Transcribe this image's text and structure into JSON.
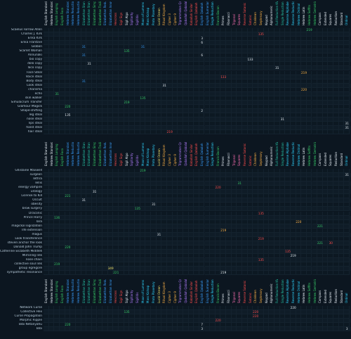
{
  "colors": {
    "background": "#0c1620",
    "label": "#b9cddc",
    "green": "#38d06a",
    "blue": "#3aa0ff",
    "red": "#ff4d4d",
    "orange": "#ffb347",
    "yellow": "#f2e36a",
    "cyan": "#2fd6ff",
    "teal": "#27c4a6",
    "purple": "#b37dff",
    "pink": "#ff6fb3",
    "white": "#e6eef4"
  },
  "headers": [
    {
      "label": "English Standard",
      "color": "#e6eef4"
    },
    {
      "label": "Hebrew Standard",
      "color": "#e6eef4"
    },
    {
      "label": "English Longing",
      "color": "#38d06a"
    },
    {
      "label": "English Foco",
      "color": "#38d06a"
    },
    {
      "label": "Hebrew Standard",
      "color": "#3aa0ff"
    },
    {
      "label": "Hebrew Reduction",
      "color": "#3aa0ff"
    },
    {
      "label": "Hebrew Reduction",
      "color": "#3aa0ff"
    },
    {
      "label": "Elizabethan Standard",
      "color": "#27c4a6"
    },
    {
      "label": "Elizabethan Standard",
      "color": "#27c4a6"
    },
    {
      "label": "Elizabethan Simple",
      "color": "#38d06a"
    },
    {
      "label": "Elizabethan Trailing",
      "color": "#38d06a"
    },
    {
      "label": "Elizabethan Reduction",
      "color": "#3aa0ff"
    },
    {
      "label": "Elizabethan Innovation",
      "color": "#3aa0ff"
    },
    {
      "label": "Hexcross",
      "color": "#ff4d4d"
    },
    {
      "label": "Sigil Sign",
      "color": "#ff4d4d"
    },
    {
      "label": "Sigil Algo",
      "color": "#e6eef4"
    },
    {
      "label": "Sigillarity",
      "color": "#b37dff"
    },
    {
      "label": "Sigillitis",
      "color": "#b37dff"
    },
    {
      "label": "Moon of Lumens",
      "color": "#2fd6ff"
    },
    {
      "label": "Mass Kidnap",
      "color": "#2fd6ff"
    },
    {
      "label": "Proto Planetary",
      "color": "#2fd6ff"
    },
    {
      "label": "Lucid Ocean",
      "color": "#f2e36a"
    },
    {
      "label": "Ritual Kingdom",
      "color": "#ffb347"
    },
    {
      "label": "Cipher 3",
      "color": "#ffb347"
    },
    {
      "label": "Cipher 9",
      "color": "#ffb347"
    },
    {
      "label": "Trigrammaton Qabalah",
      "color": "#b37dff"
    },
    {
      "label": "Qaballah Qabalah",
      "color": "#b37dff"
    },
    {
      "label": "Kaballah Sinilar",
      "color": "#ff4d4d"
    },
    {
      "label": "English Qabalah",
      "color": "#ff4d4d"
    },
    {
      "label": "English Qabalah B",
      "color": "#3aa0ff"
    },
    {
      "label": "English Sumerian",
      "color": "#3aa0ff"
    },
    {
      "label": "Single Reduction",
      "color": "#2fd6ff"
    },
    {
      "label": "Francis Bacon",
      "color": "#38d06a"
    },
    {
      "label": "Primes",
      "color": "#e6eef4"
    },
    {
      "label": "Fibonacci",
      "color": "#e6eef4"
    },
    {
      "label": "Trigonal",
      "color": "#ff6fb3"
    },
    {
      "label": "Squares",
      "color": "#ff6fb3"
    },
    {
      "label": "Reverse Satanic",
      "color": "#ff4d4d"
    },
    {
      "label": "Satanic",
      "color": "#ff4d4d"
    },
    {
      "label": "Chaldean",
      "color": "#ffb347"
    },
    {
      "label": "Septenary",
      "color": "#ffb347"
    },
    {
      "label": "Keypad",
      "color": "#e6eef4"
    },
    {
      "label": "Alphanumeric",
      "color": "#e6eef4"
    },
    {
      "label": "Full Reduction KV",
      "color": "#27c4a6"
    },
    {
      "label": "Single Reduction KV",
      "color": "#27c4a6"
    },
    {
      "label": "Reverse Alphabet",
      "color": "#2fd6ff"
    },
    {
      "label": "Reverse Reduction",
      "color": "#2fd6ff"
    },
    {
      "label": "Hebrew Ordinal",
      "color": "#2fd6ff"
    },
    {
      "label": "Hebrew Latin",
      "color": "#e6eef4"
    },
    {
      "label": "Hebrew Soffits",
      "color": "#38d06a"
    },
    {
      "label": "Hebrew Gematria",
      "color": "#38d06a"
    },
    {
      "label": "Compass",
      "color": "#e6eef4"
    },
    {
      "label": "Extended",
      "color": "#e6eef4"
    },
    {
      "label": "Squares",
      "color": "#e6eef4"
    },
    {
      "label": "Reduction",
      "color": "#e6eef4"
    },
    {
      "label": "Standard",
      "color": "#e6eef4"
    },
    {
      "label": "Ordinal",
      "color": "#2fd6ff"
    }
  ],
  "blocks": [
    {
      "rows": [
        {
          "label": "Scaelus Farrow Allen",
          "values": [
            {
              "col": 49,
              "text": "219",
              "color": "#38d06a"
            }
          ]
        },
        {
          "label": "Charles J. Kirk",
          "values": [
            {
              "col": 40,
              "text": "135",
              "color": "#ff4d4d"
            }
          ]
        },
        {
          "label": "Erika Kirk",
          "values": [
            {
              "col": 29,
              "text": "3",
              "color": "#e6eef4"
            }
          ]
        },
        {
          "label": "Erika Frantzve",
          "values": [
            {
              "col": 29,
              "text": "6",
              "color": "#e6eef4"
            }
          ]
        },
        {
          "label": "Globon",
          "values": [
            {
              "col": 7,
              "text": "31",
              "color": "#3aa0ff"
            },
            {
              "col": 18,
              "text": "31",
              "color": "#3aa0ff"
            }
          ]
        },
        {
          "label": "Scarlet Woman",
          "values": [
            {
              "col": 15,
              "text": "135",
              "color": "#38d06a"
            }
          ]
        },
        {
          "label": "Annunaki",
          "values": [
            {
              "col": 7,
              "text": "31",
              "color": "#3aa0ff"
            },
            {
              "col": 29,
              "text": "6",
              "color": "#e6eef4"
            }
          ]
        },
        {
          "label": "bio copy",
          "values": [
            {
              "col": 38,
              "text": "133",
              "color": "#e6eef4"
            }
          ]
        },
        {
          "label": "dolo copy",
          "values": [
            {
              "col": 8,
              "text": "31",
              "color": "#e6eef4"
            }
          ]
        },
        {
          "label": "Taco copy",
          "values": [
            {
              "col": 43,
              "text": "31",
              "color": "#e6eef4"
            }
          ]
        },
        {
          "label": "Face Steal",
          "values": [
            {
              "col": 48,
              "text": "219",
              "color": "#ffb347"
            }
          ]
        },
        {
          "label": "Voice steal",
          "values": [
            {
              "col": 33,
              "text": "133",
              "color": "#ff4d4d"
            }
          ]
        },
        {
          "label": "Body steal",
          "values": [
            {
              "col": 7,
              "text": "31",
              "color": "#3aa0ff"
            }
          ]
        },
        {
          "label": "Look steal",
          "values": [
            {
              "col": 22,
              "text": "31",
              "color": "#e6eef4"
            }
          ]
        },
        {
          "label": "charisma",
          "values": [
            {
              "col": 48,
              "text": "220",
              "color": "#ffb347"
            }
          ]
        },
        {
          "label": "echo",
          "values": [
            {
              "col": 2,
              "text": "31",
              "color": "#38d06a"
            }
          ]
        },
        {
          "label": "skin walker",
          "values": [
            {
              "col": 18,
              "text": "135",
              "color": "#38d06a"
            }
          ]
        },
        {
          "label": "Simulacrum Transfer",
          "values": [
            {
              "col": 15,
              "text": "219",
              "color": "#38d06a"
            }
          ]
        },
        {
          "label": "Glamour Magick",
          "values": [
            {
              "col": 4,
              "text": "220",
              "color": "#38d06a"
            }
          ]
        },
        {
          "label": "Shape-shifting",
          "values": [
            {
              "col": 29,
              "text": "2",
              "color": "#e6eef4"
            }
          ]
        },
        {
          "label": "leg steal",
          "values": [
            {
              "col": 4,
              "text": "135",
              "color": "#e6eef4"
            }
          ]
        },
        {
          "label": "nose steal",
          "values": [
            {
              "col": 44,
              "text": "31",
              "color": "#e6eef4"
            }
          ]
        },
        {
          "label": "lips steal",
          "values": [
            {
              "col": 56,
              "text": "31",
              "color": "#e6eef4"
            }
          ]
        },
        {
          "label": "hand steal",
          "values": [
            {
              "col": 56,
              "text": "31",
              "color": "#e6eef4"
            }
          ]
        },
        {
          "label": "hair steal",
          "values": [
            {
              "col": 23,
              "text": "219",
              "color": "#ff4d4d"
            }
          ]
        }
      ]
    },
    {
      "rows": [
        {
          "label": "Ghislaine Maxwell",
          "values": [
            {
              "col": 18,
              "text": "219",
              "color": "#38d06a"
            }
          ]
        },
        {
          "label": "surgeon",
          "values": [
            {
              "col": 56,
              "text": "31",
              "color": "#e6eef4"
            }
          ]
        },
        {
          "label": "Tethra",
          "values": []
        },
        {
          "label": "Tellis",
          "values": [
            {
              "col": 36,
              "text": "31",
              "color": "#38d06a"
            }
          ]
        },
        {
          "label": "energy vampire",
          "values": [
            {
              "col": 32,
              "text": "220",
              "color": "#ff4d4d"
            }
          ]
        },
        {
          "label": "urology",
          "values": [
            {
              "col": 9,
              "text": "31",
              "color": "#e6eef4"
            }
          ]
        },
        {
          "label": "License to Kill",
          "values": [
            {
              "col": 4,
              "text": "221",
              "color": "#38d06a"
            }
          ]
        },
        {
          "label": "Occult",
          "values": [
            {
              "col": 7,
              "text": "31",
              "color": "#e6eef4"
            }
          ]
        },
        {
          "label": "obesity",
          "values": [
            {
              "col": 20,
              "text": "31",
              "color": "#e6eef4"
            }
          ]
        },
        {
          "label": "brow surgery",
          "values": [
            {
              "col": 17,
              "text": "135",
              "color": "#38d06a"
            }
          ]
        },
        {
          "label": "Draconic",
          "values": [
            {
              "col": 40,
              "text": "135",
              "color": "#ff4d4d"
            }
          ]
        },
        {
          "label": "Prince Harry",
          "values": [
            {
              "col": 2,
              "text": "136",
              "color": "#38d06a"
            }
          ]
        },
        {
          "label": "Tara",
          "values": [
            {
              "col": 47,
              "text": "220",
              "color": "#ffb347"
            }
          ]
        },
        {
          "label": "magickal sigilization",
          "values": [
            {
              "col": 51,
              "text": "221",
              "color": "#38d06a"
            }
          ]
        },
        {
          "label": "life extension",
          "values": [
            {
              "col": 33,
              "text": "219",
              "color": "#ffb347"
            }
          ]
        },
        {
          "label": "magus",
          "values": [
            {
              "col": 21,
              "text": "31",
              "color": "#e6eef4"
            }
          ]
        },
        {
          "label": "Look transference",
          "values": [
            {
              "col": 40,
              "text": "219",
              "color": "#ff4d4d"
            }
          ]
        },
        {
          "label": "steven anchor the look",
          "values": [
            {
              "col": 51,
              "text": "221",
              "color": "#38d06a"
            },
            {
              "col": 53,
              "text": "30",
              "color": "#ff4d4d"
            }
          ]
        },
        {
          "label": "Donald John Trump",
          "values": [
            {
              "col": 4,
              "text": "220",
              "color": "#38d06a"
            }
          ]
        },
        {
          "label": "Catherine Elizabeth Middleton",
          "values": [
            {
              "col": 45,
              "text": "135",
              "color": "#ff4d4d"
            }
          ]
        },
        {
          "label": "Mirroring link",
          "values": [
            {
              "col": 46,
              "text": "219",
              "color": "#e6eef4"
            }
          ]
        },
        {
          "label": "nose chain",
          "values": [
            {
              "col": 40,
              "text": "135",
              "color": "#ff4d4d"
            }
          ]
        },
        {
          "label": "collective soul link",
          "values": [
            {
              "col": 2,
              "text": "219",
              "color": "#38d06a"
            }
          ]
        },
        {
          "label": "group egregore",
          "values": [
            {
              "col": 12,
              "text": "349",
              "color": "#f2e36a"
            }
          ]
        },
        {
          "label": "sympathetic resonance",
          "values": [
            {
              "col": 13,
              "text": "221",
              "color": "#38d06a"
            },
            {
              "col": 33,
              "text": "219",
              "color": "#e6eef4"
            }
          ]
        }
      ]
    },
    {
      "rows": [
        {
          "label": "Network Curse",
          "values": [
            {
              "col": 46,
              "text": "220",
              "color": "#e6eef4"
            }
          ]
        },
        {
          "label": "Collective Hex",
          "values": [
            {
              "col": 15,
              "text": "135",
              "color": "#38d06a"
            },
            {
              "col": 39,
              "text": "220",
              "color": "#ff4d4d"
            }
          ]
        },
        {
          "label": "Curse Propagation",
          "values": [
            {
              "col": 39,
              "text": "220",
              "color": "#ff4d4d"
            }
          ]
        },
        {
          "label": "Morphic Ripple",
          "values": [
            {
              "col": 32,
              "text": "220",
              "color": "#ff4d4d"
            }
          ]
        },
        {
          "label": "Bibi Netanyahu",
          "values": [
            {
              "col": 4,
              "text": "220",
              "color": "#38d06a"
            },
            {
              "col": 29,
              "text": "7",
              "color": "#e6eef4"
            }
          ]
        },
        {
          "label": "Bibi",
          "values": [
            {
              "col": 29,
              "text": "3",
              "color": "#e6eef4"
            },
            {
              "col": 56,
              "text": "3",
              "color": "#e6eef4"
            }
          ]
        }
      ]
    }
  ]
}
